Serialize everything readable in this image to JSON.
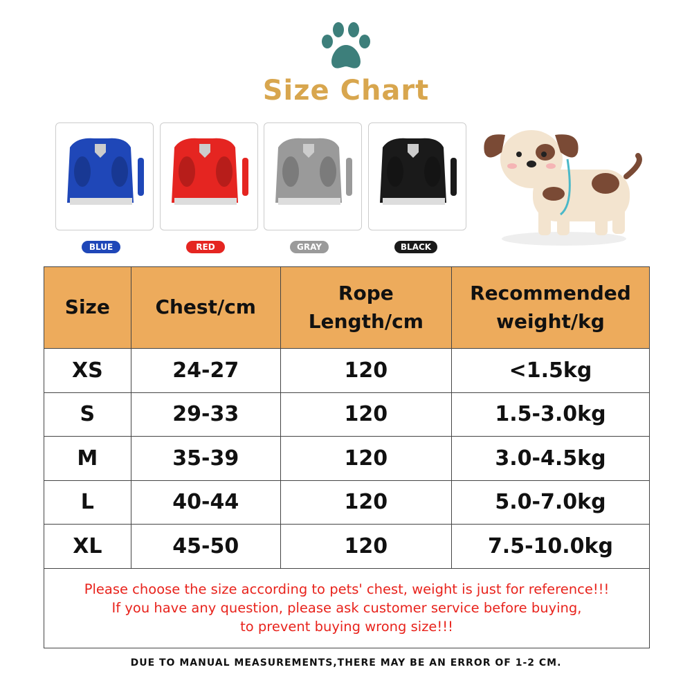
{
  "title": "Size Chart",
  "colors": [
    {
      "label": "BLUE",
      "hex": "#1f47b8"
    },
    {
      "label": "RED",
      "hex": "#e52521"
    },
    {
      "label": "GRAY",
      "hex": "#9a9a9a"
    },
    {
      "label": "BLACK",
      "hex": "#1a1a1a"
    }
  ],
  "table": {
    "headers": [
      "Size",
      "Chest/cm",
      "Rope Length/cm",
      "Recommended weight/kg"
    ],
    "rows": [
      [
        "XS",
        "24-27",
        "120",
        "<1.5kg"
      ],
      [
        "S",
        "29-33",
        "120",
        "1.5-3.0kg"
      ],
      [
        "M",
        "35-39",
        "120",
        "3.0-4.5kg"
      ],
      [
        "L",
        "40-44",
        "120",
        "5.0-7.0kg"
      ],
      [
        "XL",
        "45-50",
        "120",
        "7.5-10.0kg"
      ]
    ]
  },
  "note": [
    "Please choose the size according to pets' chest, weight is just for reference!!!",
    "If you have any question, please ask customer service before buying,",
    "to prevent buying wrong size!!!"
  ],
  "footer": "DUE TO MANUAL MEASUREMENTS,THERE MAY BE AN ERROR OF 1-2 CM.",
  "icons": [
    "paw-icon",
    "dog-illustration",
    "harness-image"
  ]
}
